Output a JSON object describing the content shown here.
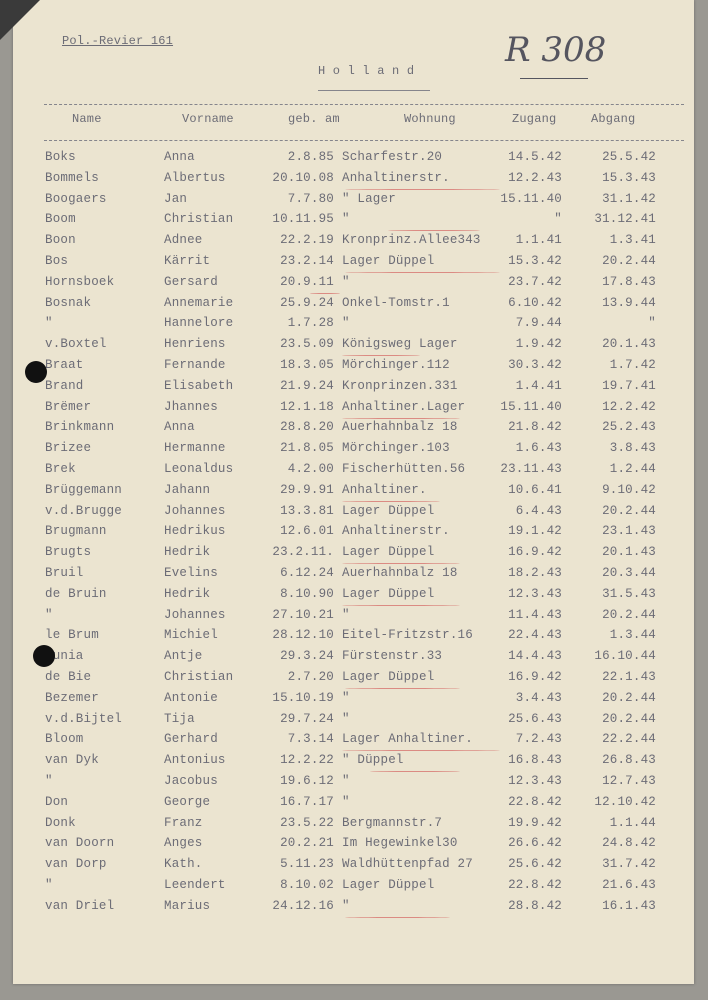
{
  "header": {
    "revier": "Pol.-Revier 161",
    "title": "H o l l a n d",
    "handwritten_ref": "R 308"
  },
  "columns": [
    "Name",
    "Vorname",
    "geb. am",
    "Wohnung",
    "Zugang",
    "Abgang"
  ],
  "rows": [
    [
      "Boks",
      "Anna",
      "2.8.85",
      "Scharfestr.20",
      "14.5.42",
      "25.5.42"
    ],
    [
      "Bommels",
      "Albertus",
      "20.10.08",
      "Anhaltinerstr.",
      "12.2.43",
      "15.3.43"
    ],
    [
      "Boogaers",
      "Jan",
      "7.7.80",
      "\"        Lager",
      "15.11.40",
      "31.1.42"
    ],
    [
      "Boom",
      "Christian",
      "10.11.95",
      "\"",
      "\"",
      "31.12.41"
    ],
    [
      "Boon",
      "Adnee",
      "22.2.19",
      "Kronprinz.Allee343",
      "1.1.41",
      "1.3.41"
    ],
    [
      "Bos",
      "Kärrit",
      "23.2.14",
      "Lager Düppel",
      "15.3.42",
      "20.2.44"
    ],
    [
      "Hornsboek",
      "Gersard",
      "20.9.11",
      "\"",
      "23.7.42",
      "17.8.43"
    ],
    [
      "Bosnak",
      "Annemarie",
      "25.9.24",
      "Onkel-Tomstr.1",
      "6.10.42",
      "13.9.44"
    ],
    [
      "\"",
      "Hannelore",
      "1.7.28",
      "\"",
      "7.9.44",
      "\""
    ],
    [
      "v.Boxtel",
      "Henriens",
      "23.5.09",
      "Königsweg Lager",
      "1.9.42",
      "20.1.43"
    ],
    [
      "Braat",
      "Fernande",
      "18.3.05",
      "Mörchinger.112",
      "30.3.42",
      "1.7.42"
    ],
    [
      "Brand",
      "Elisabeth",
      "21.9.24",
      "Kronprinzen.331",
      "1.4.41",
      "19.7.41"
    ],
    [
      "Brëmer",
      "Jhannes",
      "12.1.18",
      "Anhaltiner.Lager",
      "15.11.40",
      "12.2.42"
    ],
    [
      "Brinkmann",
      "Anna",
      "28.8.20",
      "Auerhahnbalz 18",
      "21.8.42",
      "25.2.43"
    ],
    [
      "Brizee",
      "Hermanne",
      "21.8.05",
      "Mörchinger.103",
      "1.6.43",
      "3.8.43"
    ],
    [
      "Brek",
      "Leonaldus",
      "4.2.00",
      "Fischerhütten.56",
      "23.11.43",
      "1.2.44"
    ],
    [
      "Brüggemann",
      "Jahann",
      "29.9.91",
      "Anhaltiner.",
      "10.6.41",
      "9.10.42"
    ],
    [
      "v.d.Brugge",
      "Johannes",
      "13.3.81",
      "Lager Düppel",
      "6.4.43",
      "20.2.44"
    ],
    [
      "Brugmann",
      "Hedrikus",
      "12.6.01",
      "Anhaltinerstr.",
      "19.1.42",
      "23.1.43"
    ],
    [
      "Brugts",
      "Hedrik",
      "23.2.11.",
      "Lager Düppel",
      "16.9.42",
      "20.1.43"
    ],
    [
      "Bruil",
      "Evelins",
      "6.12.24",
      "Auerhahnbalz 18",
      "18.2.43",
      "20.3.44"
    ],
    [
      "de Bruin",
      "Hedrik",
      "8.10.90",
      "Lager Düppel",
      "12.3.43",
      "31.5.43"
    ],
    [
      "\"",
      "Johannes",
      "27.10.21",
      "\"",
      "11.4.43",
      "20.2.44"
    ],
    [
      "le Brum",
      "Michiel",
      "28.12.10",
      "Eitel-Fritzstr.16",
      "22.4.43",
      "1.3.44"
    ],
    [
      "Bunia",
      "Antje",
      "29.3.24",
      "Fürstenstr.33",
      "14.4.43",
      "16.10.44"
    ],
    [
      "de Bie",
      "Christian",
      "2.7.20",
      "Lager Düppel",
      "16.9.42",
      "22.1.43"
    ],
    [
      "Bezemer",
      "Antonie",
      "15.10.19",
      "\"",
      "3.4.43",
      "20.2.44"
    ],
    [
      "v.d.Bijtel",
      "Tija",
      "29.7.24",
      "\"",
      "25.6.43",
      "20.2.44"
    ],
    [
      "Bloom",
      "Gerhard",
      "7.3.14",
      "Lager Anhaltiner.",
      "7.2.43",
      "22.2.44"
    ],
    [
      "van Dyk",
      "Antonius",
      "12.2.22",
      "\"   Düppel",
      "16.8.43",
      "26.8.43"
    ],
    [
      "\"",
      "Jacobus",
      "19.6.12",
      "\"",
      "12.3.43",
      "12.7.43"
    ],
    [
      "Don",
      "George",
      "16.7.17",
      "\"",
      "22.8.42",
      "12.10.42"
    ],
    [
      "Donk",
      "Franz",
      "23.5.22",
      "Bergmannstr.7",
      "19.9.42",
      "1.1.44"
    ],
    [
      "van Doorn",
      "Anges",
      "20.2.21",
      "Im Hegewinkel30",
      "26.6.42",
      "24.8.42"
    ],
    [
      "van Dorp",
      "Kath.",
      "5.11.23",
      "Waldhüttenpfad 27",
      "25.6.42",
      "31.7.42"
    ],
    [
      "\"",
      "Leendert",
      "8.10.02",
      "Lager Düppel",
      "22.8.42",
      "21.6.43"
    ],
    [
      "van Driel",
      "Marius",
      "24.12.16",
      "\"",
      "28.8.42",
      "16.1.43"
    ]
  ],
  "colors": {
    "paper": "#ebe4d0",
    "typewriter": "#6c6c76",
    "red_pencil": "#d66e69"
  }
}
